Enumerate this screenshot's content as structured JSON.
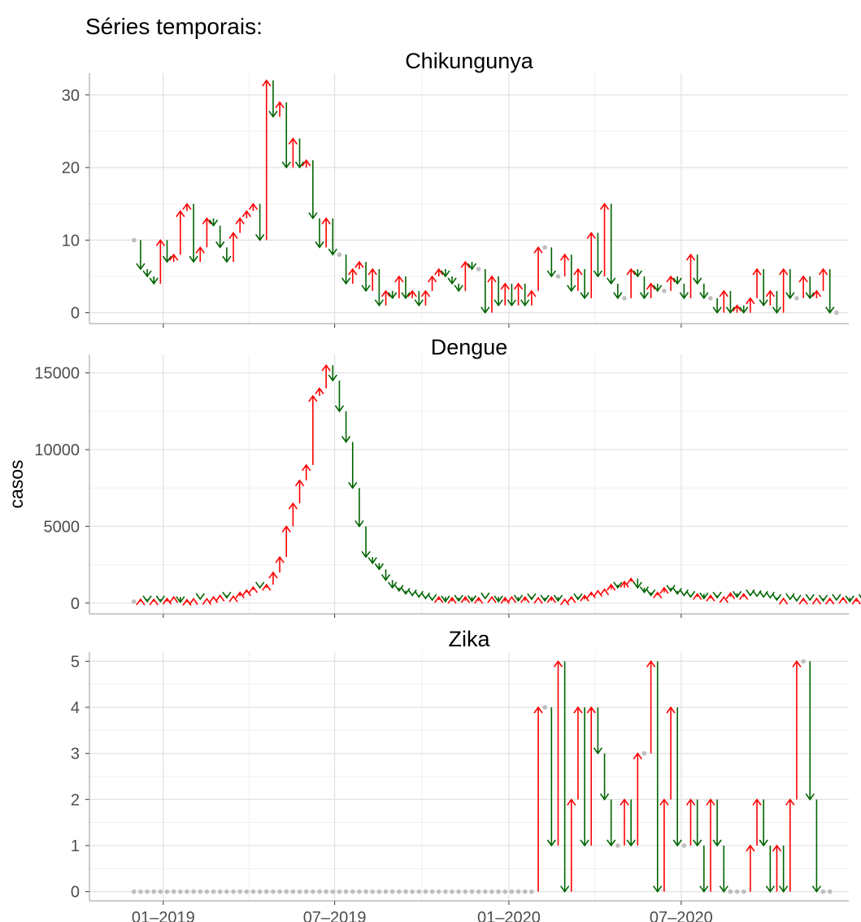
{
  "figure_title": "Séries temporais:",
  "colors": {
    "up": "#ff0000",
    "down": "#006400",
    "same": "#bebebe",
    "grid": "#e3e3e3"
  },
  "chart_data": [
    {
      "type": "line",
      "title": "Chikungunya",
      "ylabel": "",
      "ylim": [
        -1.5,
        33
      ],
      "yticks": [
        0,
        10,
        20,
        30
      ],
      "x_start": "2018-12-01",
      "x_step_days": 7,
      "xticks": [
        "01–2019",
        "07–2019",
        "01–2020",
        "07–2020"
      ],
      "values": [
        10,
        6,
        5,
        4,
        10,
        7,
        8,
        14,
        15,
        7,
        9,
        13,
        12,
        9,
        7,
        11,
        13,
        14,
        15,
        10,
        32,
        27,
        29,
        20,
        24,
        20,
        21,
        13,
        9,
        13,
        8,
        8,
        4,
        6,
        7,
        3,
        6,
        1,
        3,
        2,
        5,
        2,
        3,
        1,
        3,
        5,
        6,
        5,
        4,
        3,
        7,
        6,
        6,
        0,
        5,
        1,
        4,
        1,
        4,
        1,
        3,
        9,
        9,
        5,
        5,
        8,
        3,
        6,
        2,
        11,
        5,
        15,
        4,
        2,
        2,
        6,
        5,
        2,
        4,
        3,
        3,
        5,
        4,
        2,
        8,
        4,
        2,
        2,
        0,
        3,
        0,
        1,
        0,
        2,
        6,
        1,
        3,
        0,
        6,
        2,
        2,
        5,
        2,
        3,
        6,
        0,
        0
      ]
    },
    {
      "type": "line",
      "title": "Dengue",
      "ylabel": "casos",
      "ylim": [
        -700,
        16200
      ],
      "yticks": [
        0,
        5000,
        10000,
        15000
      ],
      "x_start": "2018-12-01",
      "x_step_days": 7,
      "xticks": [
        "01–2019",
        "07–2019",
        "01–2020",
        "07–2020"
      ],
      "values": [
        100,
        250,
        100,
        250,
        100,
        300,
        400,
        60,
        220,
        280,
        260,
        280,
        400,
        500,
        350,
        450,
        700,
        850,
        1050,
        1000,
        1200,
        2000,
        3000,
        5000,
        6500,
        8000,
        9000,
        13500,
        14000,
        15500,
        14500,
        12500,
        10500,
        7500,
        5000,
        3000,
        2600,
        2200,
        1500,
        1000,
        800,
        600,
        500,
        400,
        300,
        200,
        400,
        100,
        350,
        150,
        400,
        120,
        350,
        300,
        400,
        100,
        350,
        400,
        150,
        400,
        250,
        350,
        150,
        400,
        150,
        250,
        400,
        250,
        500,
        700,
        800,
        900,
        1200,
        1000,
        1400,
        1600,
        1000,
        700,
        500,
        700,
        1000,
        800,
        600,
        500,
        400,
        600,
        300,
        500,
        350,
        400,
        650,
        400,
        600,
        500,
        450,
        400,
        350,
        200,
        300,
        250,
        150,
        300,
        200,
        300,
        150,
        300,
        200,
        350,
        100,
        300,
        200
      ]
    },
    {
      "type": "line",
      "title": "Zika",
      "ylabel": "",
      "ylim": [
        -0.2,
        5.2
      ],
      "yticks": [
        0,
        1,
        2,
        3,
        4,
        5
      ],
      "x_start": "2018-12-01",
      "x_step_days": 7,
      "xticks": [
        "01–2019",
        "07–2019",
        "01–2020",
        "07–2020"
      ],
      "values": [
        0,
        0,
        0,
        0,
        0,
        0,
        0,
        0,
        0,
        0,
        0,
        0,
        0,
        0,
        0,
        0,
        0,
        0,
        0,
        0,
        0,
        0,
        0,
        0,
        0,
        0,
        0,
        0,
        0,
        0,
        0,
        0,
        0,
        0,
        0,
        0,
        0,
        0,
        0,
        0,
        0,
        0,
        0,
        0,
        0,
        0,
        0,
        0,
        0,
        0,
        0,
        0,
        0,
        0,
        0,
        0,
        0,
        0,
        0,
        0,
        0,
        4,
        4,
        1,
        5,
        0,
        2,
        4,
        1,
        4,
        3,
        2,
        1,
        1,
        2,
        1,
        3,
        3,
        5,
        0,
        2,
        4,
        1,
        1,
        2,
        1,
        0,
        2,
        1,
        0,
        0,
        0,
        0,
        1,
        2,
        1,
        0,
        1,
        0,
        2,
        5,
        5,
        2,
        0,
        0,
        0
      ]
    }
  ]
}
